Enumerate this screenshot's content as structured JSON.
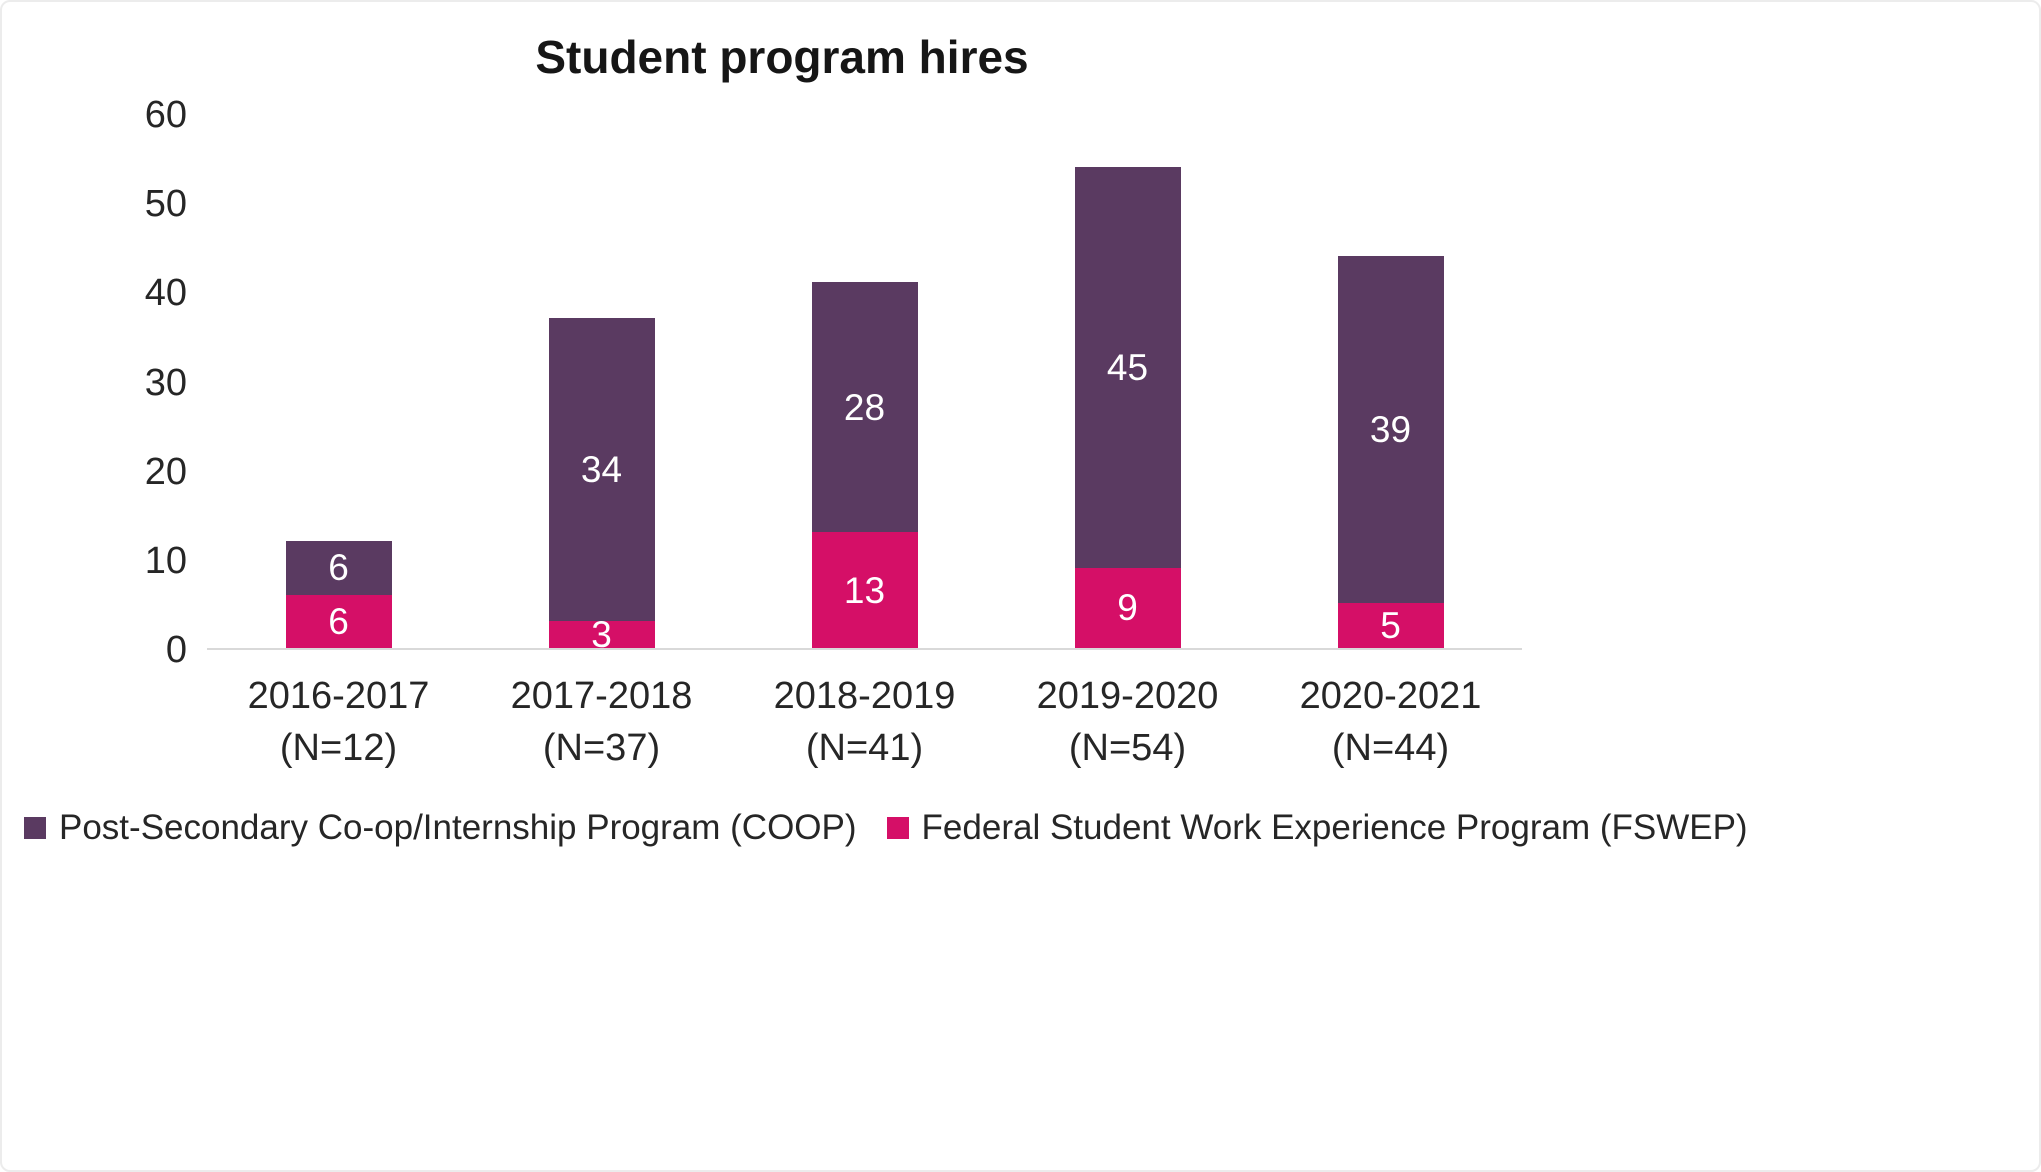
{
  "chart_data": {
    "type": "bar",
    "stacked": true,
    "title": "Student program hires",
    "categories": [
      {
        "label": "2016-2017",
        "sublabel": "(N=12)"
      },
      {
        "label": "2017-2018",
        "sublabel": "(N=37)"
      },
      {
        "label": "2018-2019",
        "sublabel": "(N=41)"
      },
      {
        "label": "2019-2020",
        "sublabel": "(N=54)"
      },
      {
        "label": "2020-2021",
        "sublabel": "(N=44)"
      }
    ],
    "series": [
      {
        "name": "Post-Secondary Co-op/Internship Program (COOP)",
        "color": "#5A3A61",
        "stack_position": "top",
        "values": [
          6,
          34,
          28,
          45,
          39
        ]
      },
      {
        "name": "Federal Student Work Experience Program (FSWEP)",
        "color": "#D50F67",
        "stack_position": "bottom",
        "values": [
          6,
          3,
          13,
          9,
          5
        ]
      }
    ],
    "totals": [
      12,
      37,
      41,
      54,
      44
    ],
    "ylim": [
      0,
      60
    ],
    "y_ticks": [
      0,
      10,
      20,
      30,
      40,
      50,
      60
    ],
    "grid": false,
    "legend_position": "bottom-left",
    "axis_line_color": "#d9d9d9"
  }
}
